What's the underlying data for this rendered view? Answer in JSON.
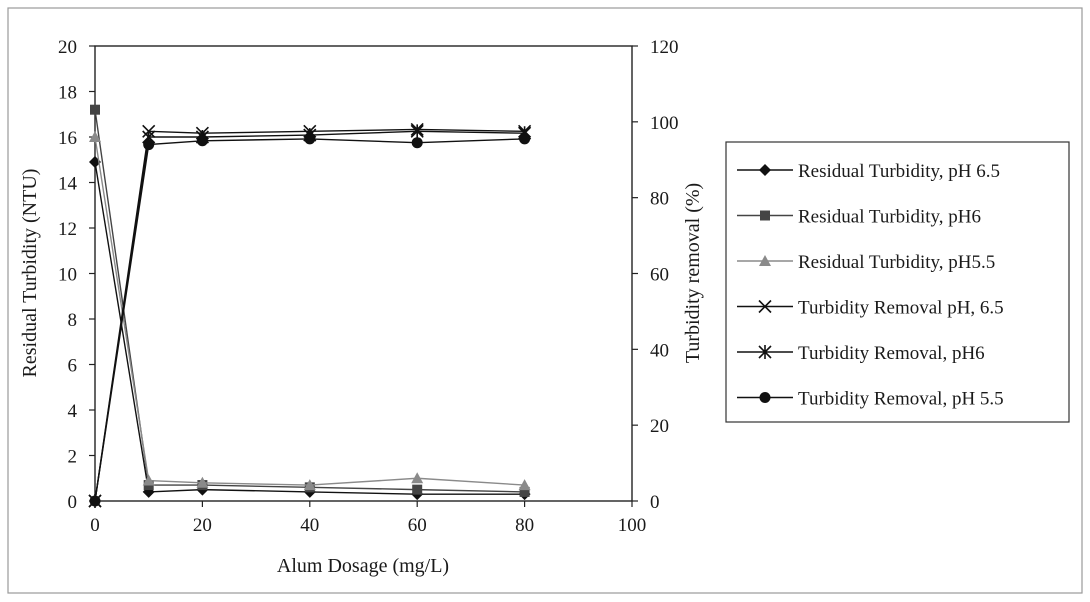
{
  "chart_data": {
    "type": "line",
    "title": "",
    "xlabel": "Alum Dosage (mg/L)",
    "ylabel": "Residual Turbidity (NTU)",
    "y2label": "Turbidity removal (%)",
    "xlim": [
      0,
      100
    ],
    "ylim": [
      0,
      20
    ],
    "y2lim": [
      0,
      120
    ],
    "x_ticks": [
      "0",
      "20",
      "40",
      "60",
      "80",
      "100"
    ],
    "y_ticks": [
      "0",
      "2",
      "4",
      "6",
      "8",
      "10",
      "12",
      "14",
      "16",
      "18",
      "20"
    ],
    "y2_ticks": [
      "0",
      "20",
      "40",
      "60",
      "80",
      "100",
      "120"
    ],
    "grid": false,
    "legend_position": "right",
    "x": [
      0,
      10,
      20,
      40,
      60,
      80
    ],
    "series": [
      {
        "name": "Residual Turbidity, pH 6.5",
        "axis": "left",
        "marker": "diamond",
        "color": "#111111",
        "values": [
          14.9,
          0.4,
          0.5,
          0.4,
          0.3,
          0.3
        ]
      },
      {
        "name": "Residual Turbidity, pH6",
        "axis": "left",
        "marker": "square",
        "color": "#444444",
        "values": [
          17.2,
          0.7,
          0.7,
          0.6,
          0.5,
          0.4
        ]
      },
      {
        "name": "Residual Turbidity, pH5.5",
        "axis": "left",
        "marker": "triangle",
        "color": "#8a8a8a",
        "values": [
          16.0,
          0.9,
          0.8,
          0.7,
          1.0,
          0.7
        ]
      },
      {
        "name": "Turbidity Removal pH, 6.5",
        "axis": "right",
        "marker": "x",
        "color": "#111111",
        "values": [
          0,
          97.5,
          97,
          97.5,
          98,
          97.5
        ]
      },
      {
        "name": "Turbidity Removal, pH6",
        "axis": "right",
        "marker": "star",
        "color": "#111111",
        "values": [
          0,
          96,
          96,
          96.5,
          97.5,
          97
        ]
      },
      {
        "name": "Turbidity Removal, pH 5.5",
        "axis": "right",
        "marker": "circle",
        "color": "#111111",
        "values": [
          0,
          94,
          95,
          95.5,
          94.5,
          95.5
        ]
      }
    ]
  }
}
